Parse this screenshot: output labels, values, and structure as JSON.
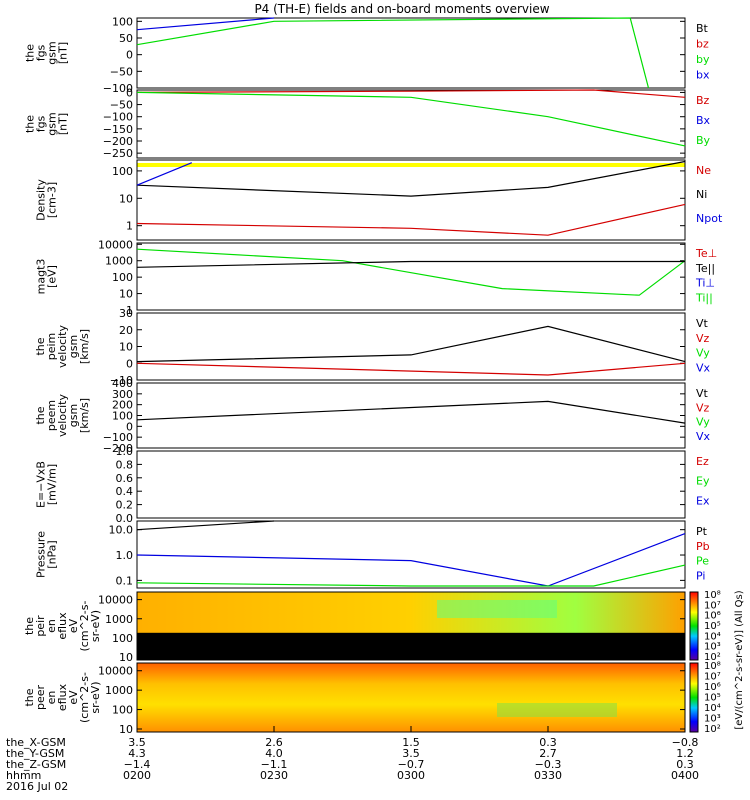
{
  "title": "P4 (TH-E) fields and on-board moments overview",
  "colors": {
    "black": "#000000",
    "red": "#d40000",
    "green": "#00dd00",
    "blue": "#0000e0",
    "yellow": "#ffff00"
  },
  "panels": [
    {
      "id": "fgs_top",
      "ylabel": [
        "the",
        "fgs",
        "gsm",
        "[nT]"
      ],
      "ticks": [
        "100",
        "50",
        "0",
        "−50",
        "−100"
      ],
      "tick_values": [
        100,
        50,
        0,
        -50,
        -100
      ],
      "ylim": [
        -100,
        110
      ],
      "legend": [
        {
          "label": "Bt",
          "color": "black"
        },
        {
          "label": "bz",
          "color": "red"
        },
        {
          "label": "by",
          "color": "green"
        },
        {
          "label": "bx",
          "color": "blue"
        }
      ]
    },
    {
      "id": "fgs_low",
      "ylabel": [
        "the",
        "fgs",
        "gsm",
        "[nT]"
      ],
      "ticks": [
        "0",
        "−50",
        "−100",
        "−150",
        "−200",
        "−250"
      ],
      "tick_values": [
        0,
        -50,
        -100,
        -150,
        -200,
        -250
      ],
      "ylim": [
        -270,
        10
      ],
      "legend": [
        {
          "label": "Bz",
          "color": "red"
        },
        {
          "label": "Bx",
          "color": "blue"
        },
        {
          "label": "By",
          "color": "green"
        }
      ]
    },
    {
      "id": "density",
      "ylabel": [
        "Density",
        "[cm-3]"
      ],
      "ticks": [
        "100",
        "10",
        "1"
      ],
      "tick_values": [
        100,
        10,
        1
      ],
      "log": true,
      "ylim": [
        0.3,
        250
      ],
      "legend": [
        {
          "label": "Ne",
          "color": "red"
        },
        {
          "label": "Ni",
          "color": "black"
        },
        {
          "label": "Npot",
          "color": "blue"
        }
      ]
    },
    {
      "id": "temp",
      "ylabel": [
        "magt3",
        "[eV]"
      ],
      "ticks": [
        "10000",
        "1000",
        "100",
        "10",
        "1"
      ],
      "tick_values": [
        10000,
        1000,
        100,
        10,
        1
      ],
      "log": true,
      "ylim": [
        1,
        12000
      ],
      "legend": [
        {
          "label": "Te⊥",
          "color": "red"
        },
        {
          "label": "Te||",
          "color": "black"
        },
        {
          "label": "Ti⊥",
          "color": "blue"
        },
        {
          "label": "Ti||",
          "color": "green"
        }
      ]
    },
    {
      "id": "peim",
      "ylabel": [
        "the",
        "peim",
        "velocity",
        "gsm",
        "[km/s]"
      ],
      "ticks": [
        "30",
        "20",
        "10",
        "0",
        "−10"
      ],
      "tick_values": [
        30,
        20,
        10,
        0,
        -10
      ],
      "ylim": [
        -10,
        30
      ],
      "legend": [
        {
          "label": "Vt",
          "color": "black"
        },
        {
          "label": "Vz",
          "color": "red"
        },
        {
          "label": "Vy",
          "color": "green"
        },
        {
          "label": "Vx",
          "color": "blue"
        }
      ]
    },
    {
      "id": "peem",
      "ylabel": [
        "the",
        "peem",
        "velocity",
        "gsm",
        "[km/s]"
      ],
      "ticks": [
        "400",
        "300",
        "200",
        "100",
        "0",
        "−100",
        "−200"
      ],
      "tick_values": [
        400,
        300,
        200,
        100,
        0,
        -100,
        -200
      ],
      "ylim": [
        -200,
        400
      ],
      "legend": [
        {
          "label": "Vt",
          "color": "black"
        },
        {
          "label": "Vz",
          "color": "red"
        },
        {
          "label": "Vy",
          "color": "green"
        },
        {
          "label": "Vx",
          "color": "blue"
        }
      ]
    },
    {
      "id": "efield",
      "ylabel": [
        "E=−VxB",
        "[mV/m]"
      ],
      "ticks": [
        "1.0",
        "0.8",
        "0.6",
        "0.4",
        "0.2",
        "0.0"
      ],
      "tick_values": [
        1.0,
        0.8,
        0.6,
        0.4,
        0.2,
        0.0
      ],
      "ylim": [
        0,
        1
      ],
      "legend": [
        {
          "label": "Ez",
          "color": "red"
        },
        {
          "label": "Ey",
          "color": "green"
        },
        {
          "label": "Ex",
          "color": "blue"
        }
      ]
    },
    {
      "id": "pressure",
      "ylabel": [
        "Pressure",
        "[nPa]"
      ],
      "ticks": [
        "10.0",
        "1.0",
        "0.1"
      ],
      "tick_values": [
        10,
        1,
        0.1
      ],
      "log": true,
      "ylim": [
        0.05,
        22
      ],
      "legend": [
        {
          "label": "Pt",
          "color": "black"
        },
        {
          "label": "Pb",
          "color": "red"
        },
        {
          "label": "Pe",
          "color": "green"
        },
        {
          "label": "Pi",
          "color": "blue"
        }
      ]
    },
    {
      "id": "peir",
      "ylabel": [
        "the",
        "peir",
        "en",
        "eflux",
        "eV",
        "(cm^2-s-",
        "sr-eV)"
      ],
      "ticks": [
        "10000",
        "1000",
        "100",
        "10"
      ],
      "tick_values": [
        10000,
        1000,
        100,
        10
      ],
      "log": true,
      "ylim": [
        7,
        25000
      ]
    },
    {
      "id": "peer",
      "ylabel": [
        "the",
        "peer",
        "en",
        "eflux",
        "eV",
        "(cm^2-s-",
        "sr-eV)"
      ],
      "ticks": [
        "10000",
        "1000",
        "100",
        "10"
      ],
      "tick_values": [
        10000,
        1000,
        100,
        10
      ],
      "log": true,
      "ylim": [
        7,
        25000
      ]
    }
  ],
  "colorbar": {
    "ticks": [
      "10⁸",
      "10⁷",
      "10⁶",
      "10⁵",
      "10⁴",
      "10³",
      "10²"
    ],
    "ticks_lower": [
      "10⁸",
      "10⁷",
      "10⁶",
      "10⁵",
      "10⁴",
      "10³",
      "10²"
    ],
    "label": "[eV/(cm^2-s-sr-eV)] (All Qs)"
  },
  "xaxis": {
    "rows": [
      {
        "label": "the_X-GSM",
        "values": [
          "3.5",
          "2.6",
          "1.5",
          "0.3",
          "−0.8"
        ]
      },
      {
        "label": "the_Y-GSM",
        "values": [
          "4.3",
          "4.0",
          "3.5",
          "2.7",
          "1.2"
        ]
      },
      {
        "label": "the_Z-GSM",
        "values": [
          "−1.4",
          "−1.1",
          "−0.7",
          "−0.3",
          "0.3"
        ]
      },
      {
        "label": "hhmm",
        "values": [
          "0200",
          "0230",
          "0300",
          "0330",
          "0400"
        ]
      }
    ],
    "date": "2016 Jul 02"
  },
  "chart_data": {
    "type": "line",
    "title": "P4 (TH-E) fields and on-board moments overview",
    "x": [
      "0200",
      "0230",
      "0300",
      "0330",
      "0400"
    ],
    "series": [
      {
        "name": "bx",
        "panel": "fgs_top",
        "x": [
          "0200",
          "0230"
        ],
        "values": [
          75,
          110
        ]
      },
      {
        "name": "by",
        "panel": "fgs_top",
        "x": [
          "0200",
          "0230",
          "0348",
          "0352"
        ],
        "values": [
          30,
          100,
          110,
          -100
        ]
      },
      {
        "name": "Bz",
        "panel": "fgs_low",
        "x": [
          "0200",
          "0300",
          "0340",
          "0400"
        ],
        "values": [
          0,
          5,
          15,
          -20
        ]
      },
      {
        "name": "By",
        "panel": "fgs_low",
        "x": [
          "0200",
          "0300",
          "0330",
          "0400"
        ],
        "values": [
          0,
          -20,
          -100,
          -220
        ]
      },
      {
        "name": "Ni",
        "panel": "density",
        "x": [
          "0200",
          "0300",
          "0330",
          "0400"
        ],
        "values": [
          30,
          12,
          25,
          220
        ]
      },
      {
        "name": "Ne",
        "panel": "density",
        "x": [
          "0200",
          "0300",
          "0330",
          "0400"
        ],
        "values": [
          1.2,
          0.8,
          0.45,
          6
        ]
      },
      {
        "name": "Npot",
        "panel": "density",
        "x": [
          "0200",
          "0212"
        ],
        "values": [
          30,
          200
        ]
      },
      {
        "name": "Ti||",
        "panel": "temp",
        "x": [
          "0200",
          "0245",
          "0320",
          "0350",
          "0400"
        ],
        "values": [
          5000,
          1000,
          20,
          8,
          1000
        ]
      },
      {
        "name": "Te||",
        "panel": "temp",
        "x": [
          "0200",
          "0300",
          "0400"
        ],
        "values": [
          400,
          900,
          900
        ]
      },
      {
        "name": "Vt",
        "panel": "peim",
        "x": [
          "0200",
          "0300",
          "0330",
          "0400"
        ],
        "values": [
          1,
          5,
          22,
          1
        ]
      },
      {
        "name": "Vz",
        "panel": "peim",
        "x": [
          "0200",
          "0330",
          "0400"
        ],
        "values": [
          0,
          -7,
          0
        ]
      },
      {
        "name": "Vt",
        "panel": "peem",
        "x": [
          "0200",
          "0330",
          "0400"
        ],
        "values": [
          60,
          230,
          30
        ]
      },
      {
        "name": "Pt",
        "panel": "pressure",
        "x": [
          "0200",
          "0230"
        ],
        "values": [
          10,
          22
        ]
      },
      {
        "name": "Pi",
        "panel": "pressure",
        "x": [
          "0200",
          "0300",
          "0330",
          "0400"
        ],
        "values": [
          1,
          0.6,
          0.06,
          7
        ]
      },
      {
        "name": "Pe",
        "panel": "pressure",
        "x": [
          "0200",
          "0300",
          "0340",
          "0400"
        ],
        "values": [
          0.08,
          0.06,
          0.06,
          0.4
        ]
      }
    ]
  }
}
